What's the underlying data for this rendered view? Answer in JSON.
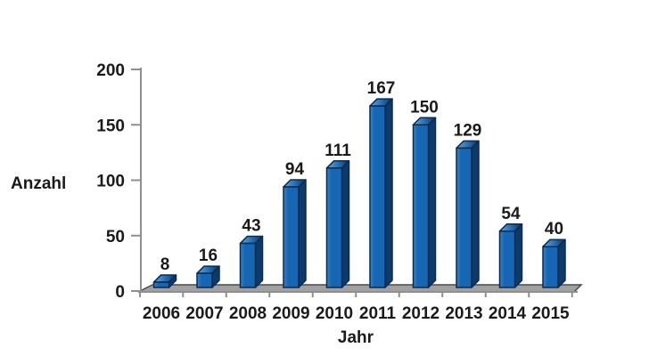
{
  "chart_data": {
    "type": "bar",
    "title": "",
    "categories": [
      "2006",
      "2007",
      "2008",
      "2009",
      "2010",
      "2011",
      "2012",
      "2013",
      "2014",
      "2015"
    ],
    "values": [
      8,
      16,
      43,
      94,
      111,
      167,
      150,
      129,
      54,
      40
    ],
    "xlabel": "Jahr",
    "ylabel": "Anzahl",
    "yticks": [
      0,
      50,
      100,
      150,
      200
    ],
    "ylim": [
      0,
      200
    ],
    "grid": false,
    "legend": null,
    "style": "3d-bars",
    "value_labels": [
      "8",
      "16",
      "43",
      "94",
      "111",
      "167",
      "150",
      "129",
      "54",
      "40"
    ],
    "colors": {
      "bar_front": "#1766b4",
      "bar_front_highlight": "#3585c8",
      "bar_side": "#0e3a69",
      "bar_top_light": "#66a7de",
      "bar_top_mid": "#2f77b8",
      "bar_top_dark": "#0d3161",
      "bar_outline": "#0a2a50",
      "floor_fill": "#a1a1a1",
      "floor_outline": "#4a4a4a",
      "axis": "#8f8f8f",
      "text": "#1a1a1a",
      "background": "#ffffff"
    }
  }
}
